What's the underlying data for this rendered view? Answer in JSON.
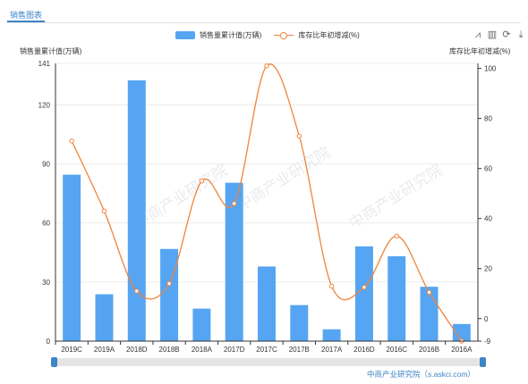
{
  "tab": {
    "label": "销售图表"
  },
  "legend": {
    "bars": "销售量累计值(万辆)",
    "line": "库存比年初增减(%)"
  },
  "axes": {
    "left_title": "销售量累计值(万辆)",
    "right_title": "库存比年初增减(%)"
  },
  "toolbox": [
    {
      "name": "line-chart-icon",
      "glyph": "⩘"
    },
    {
      "name": "bar-chart-icon",
      "glyph": "▥"
    },
    {
      "name": "restore-icon",
      "glyph": "⟳"
    },
    {
      "name": "download-icon",
      "glyph": "⤓"
    }
  ],
  "watermark": "中商产业研究院",
  "source": "中商产业研究院（s.askci.com）",
  "chart_data": {
    "type": "bar",
    "categories": [
      "2019C",
      "2019A",
      "2018D",
      "2018B",
      "2018A",
      "2017D",
      "2017C",
      "2017B",
      "2017A",
      "2016D",
      "2016C",
      "2016B",
      "2016A"
    ],
    "series": [
      {
        "name": "销售量累计值(万辆)",
        "type": "bar",
        "axis": "left",
        "color": "#55a5f2",
        "values": [
          84.5,
          23.8,
          132.4,
          46.8,
          16.5,
          80.4,
          37.9,
          18.3,
          6.0,
          48.1,
          43.1,
          27.6,
          8.7
        ]
      },
      {
        "name": "库存比年初增减(%)",
        "type": "line",
        "axis": "right",
        "smooth": true,
        "color": "#f0843c",
        "values": [
          71.0,
          43.0,
          11.0,
          14.0,
          55.0,
          46.0,
          101.0,
          73.0,
          13.0,
          12.5,
          33.0,
          10.5,
          -9.0
        ]
      }
    ],
    "y_left": {
      "ylim": [
        0,
        141
      ],
      "ticks": [
        0,
        30,
        60,
        90,
        120,
        141
      ]
    },
    "y_right": {
      "ylim": [
        -9,
        102
      ],
      "ticks": [
        -9,
        0,
        20,
        40,
        60,
        80,
        100
      ]
    }
  }
}
